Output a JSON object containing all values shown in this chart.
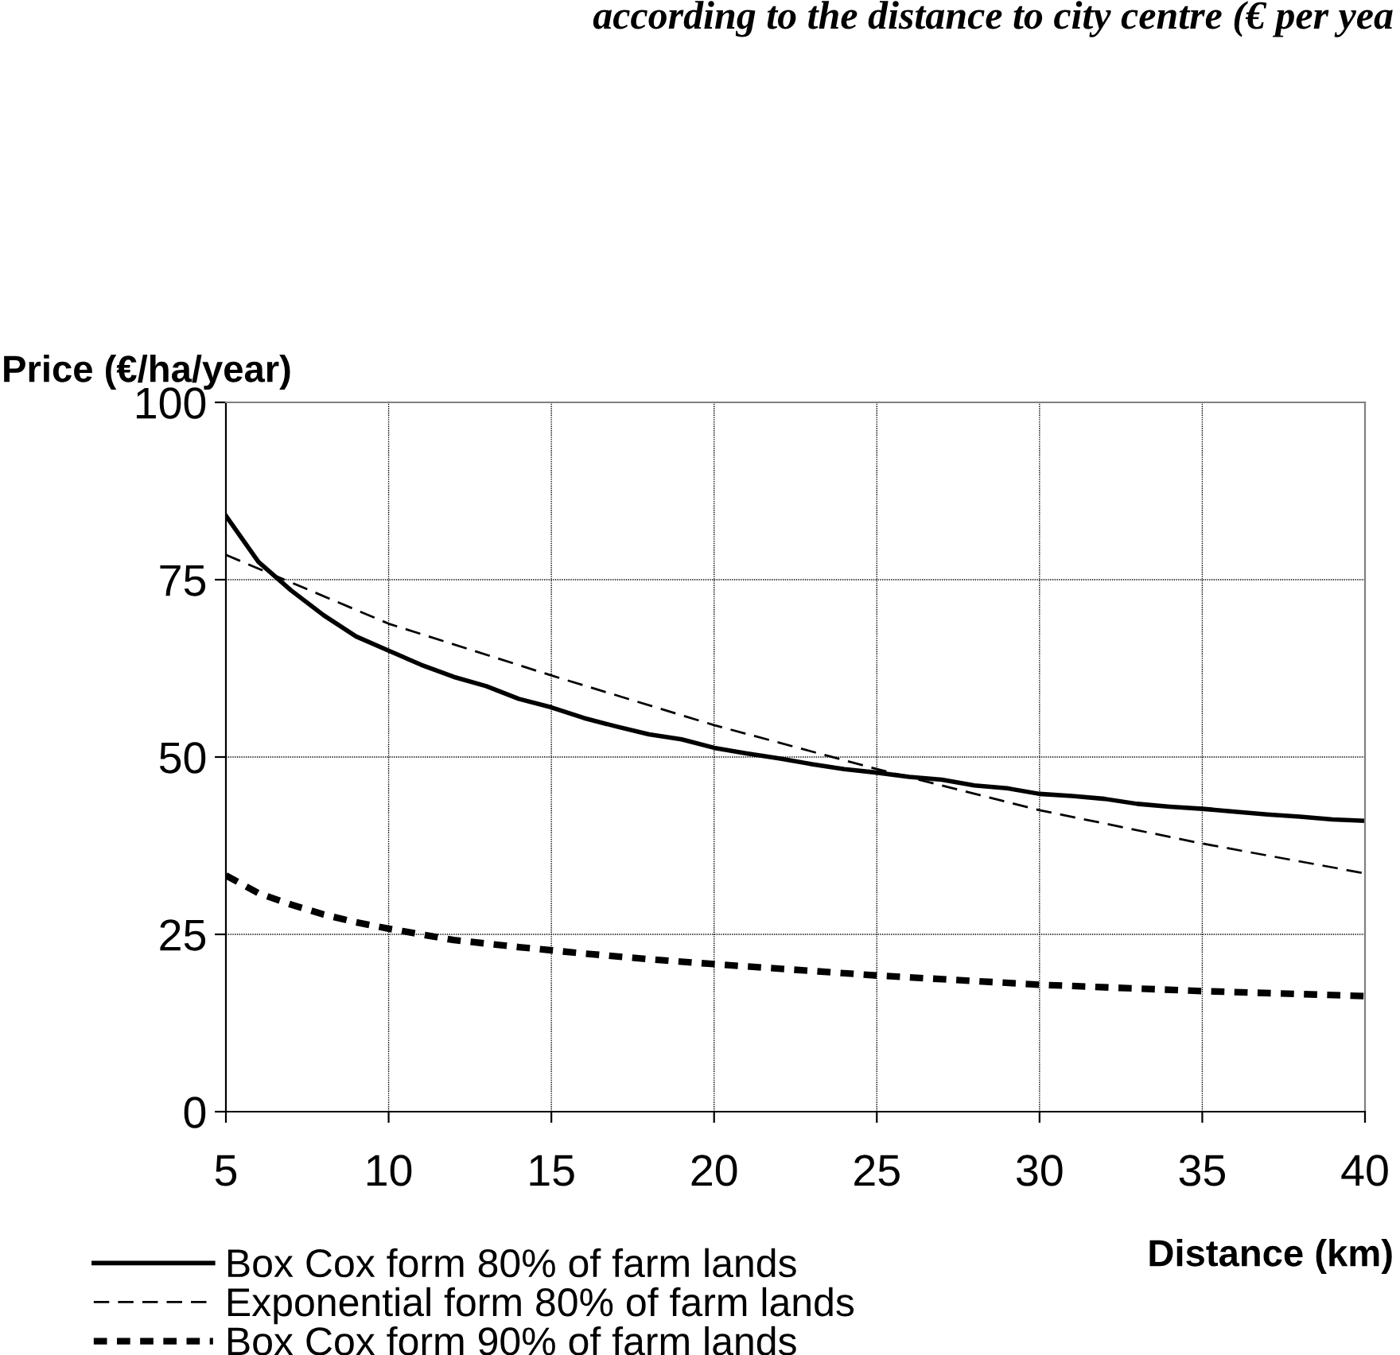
{
  "chart_data": {
    "type": "line",
    "title": "according to the distance to city centre (€ per yea",
    "xlabel": "Distance (km)",
    "ylabel": "Price (€/ha/year)",
    "xlim": [
      5,
      40
    ],
    "xticks": [
      5,
      10,
      15,
      20,
      25,
      30,
      35,
      40
    ],
    "ylim": [
      0,
      100
    ],
    "yticks": [
      0,
      25,
      50,
      75,
      100
    ],
    "grid": true,
    "legend": "bottom left",
    "marker": "none",
    "x": [
      5,
      6,
      7,
      8,
      9,
      10,
      11,
      12,
      13,
      14,
      15,
      16,
      17,
      18,
      19,
      20,
      21,
      22,
      23,
      24,
      25,
      26,
      27,
      28,
      29,
      30,
      31,
      32,
      33,
      34,
      35,
      36,
      37,
      38,
      39,
      40
    ],
    "series": [
      {
        "name": "Box Cox form 80% of farm lands",
        "color": "#000000",
        "line_style": "solid",
        "values": [
          84,
          77.5,
          73.5,
          70,
          67,
          65,
          63,
          61.3,
          60,
          58.2,
          57,
          55.5,
          54.3,
          53.2,
          52.5,
          51.3,
          50.5,
          49.8,
          49,
          48.3,
          47.8,
          47.2,
          46.8,
          46,
          45.6,
          44.8,
          44.5,
          44.1,
          43.4,
          43,
          42.7,
          42.3,
          41.9,
          41.6,
          41.2,
          41
        ]
      },
      {
        "name": "Exponential form 80% of farm lands",
        "color": "#000000",
        "line_style": "dashed",
        "x": [
          5,
          10,
          15,
          20,
          25,
          30,
          35,
          40
        ],
        "values": [
          78.5,
          68.8,
          61.5,
          54.5,
          48.3,
          42.5,
          37.8,
          33.6
        ]
      },
      {
        "name": "Box Cox form 90% of farm lands",
        "color": "#000000",
        "line_style": "dotted",
        "x": [
          5,
          6,
          7,
          8,
          9,
          10,
          12,
          14,
          16,
          18,
          20,
          25,
          30,
          35,
          40
        ],
        "values": [
          33.3,
          30.8,
          29.2,
          27.8,
          26.7,
          25.8,
          24.2,
          23.2,
          22.3,
          21.5,
          20.8,
          19.2,
          17.9,
          17,
          16.3
        ]
      }
    ]
  }
}
